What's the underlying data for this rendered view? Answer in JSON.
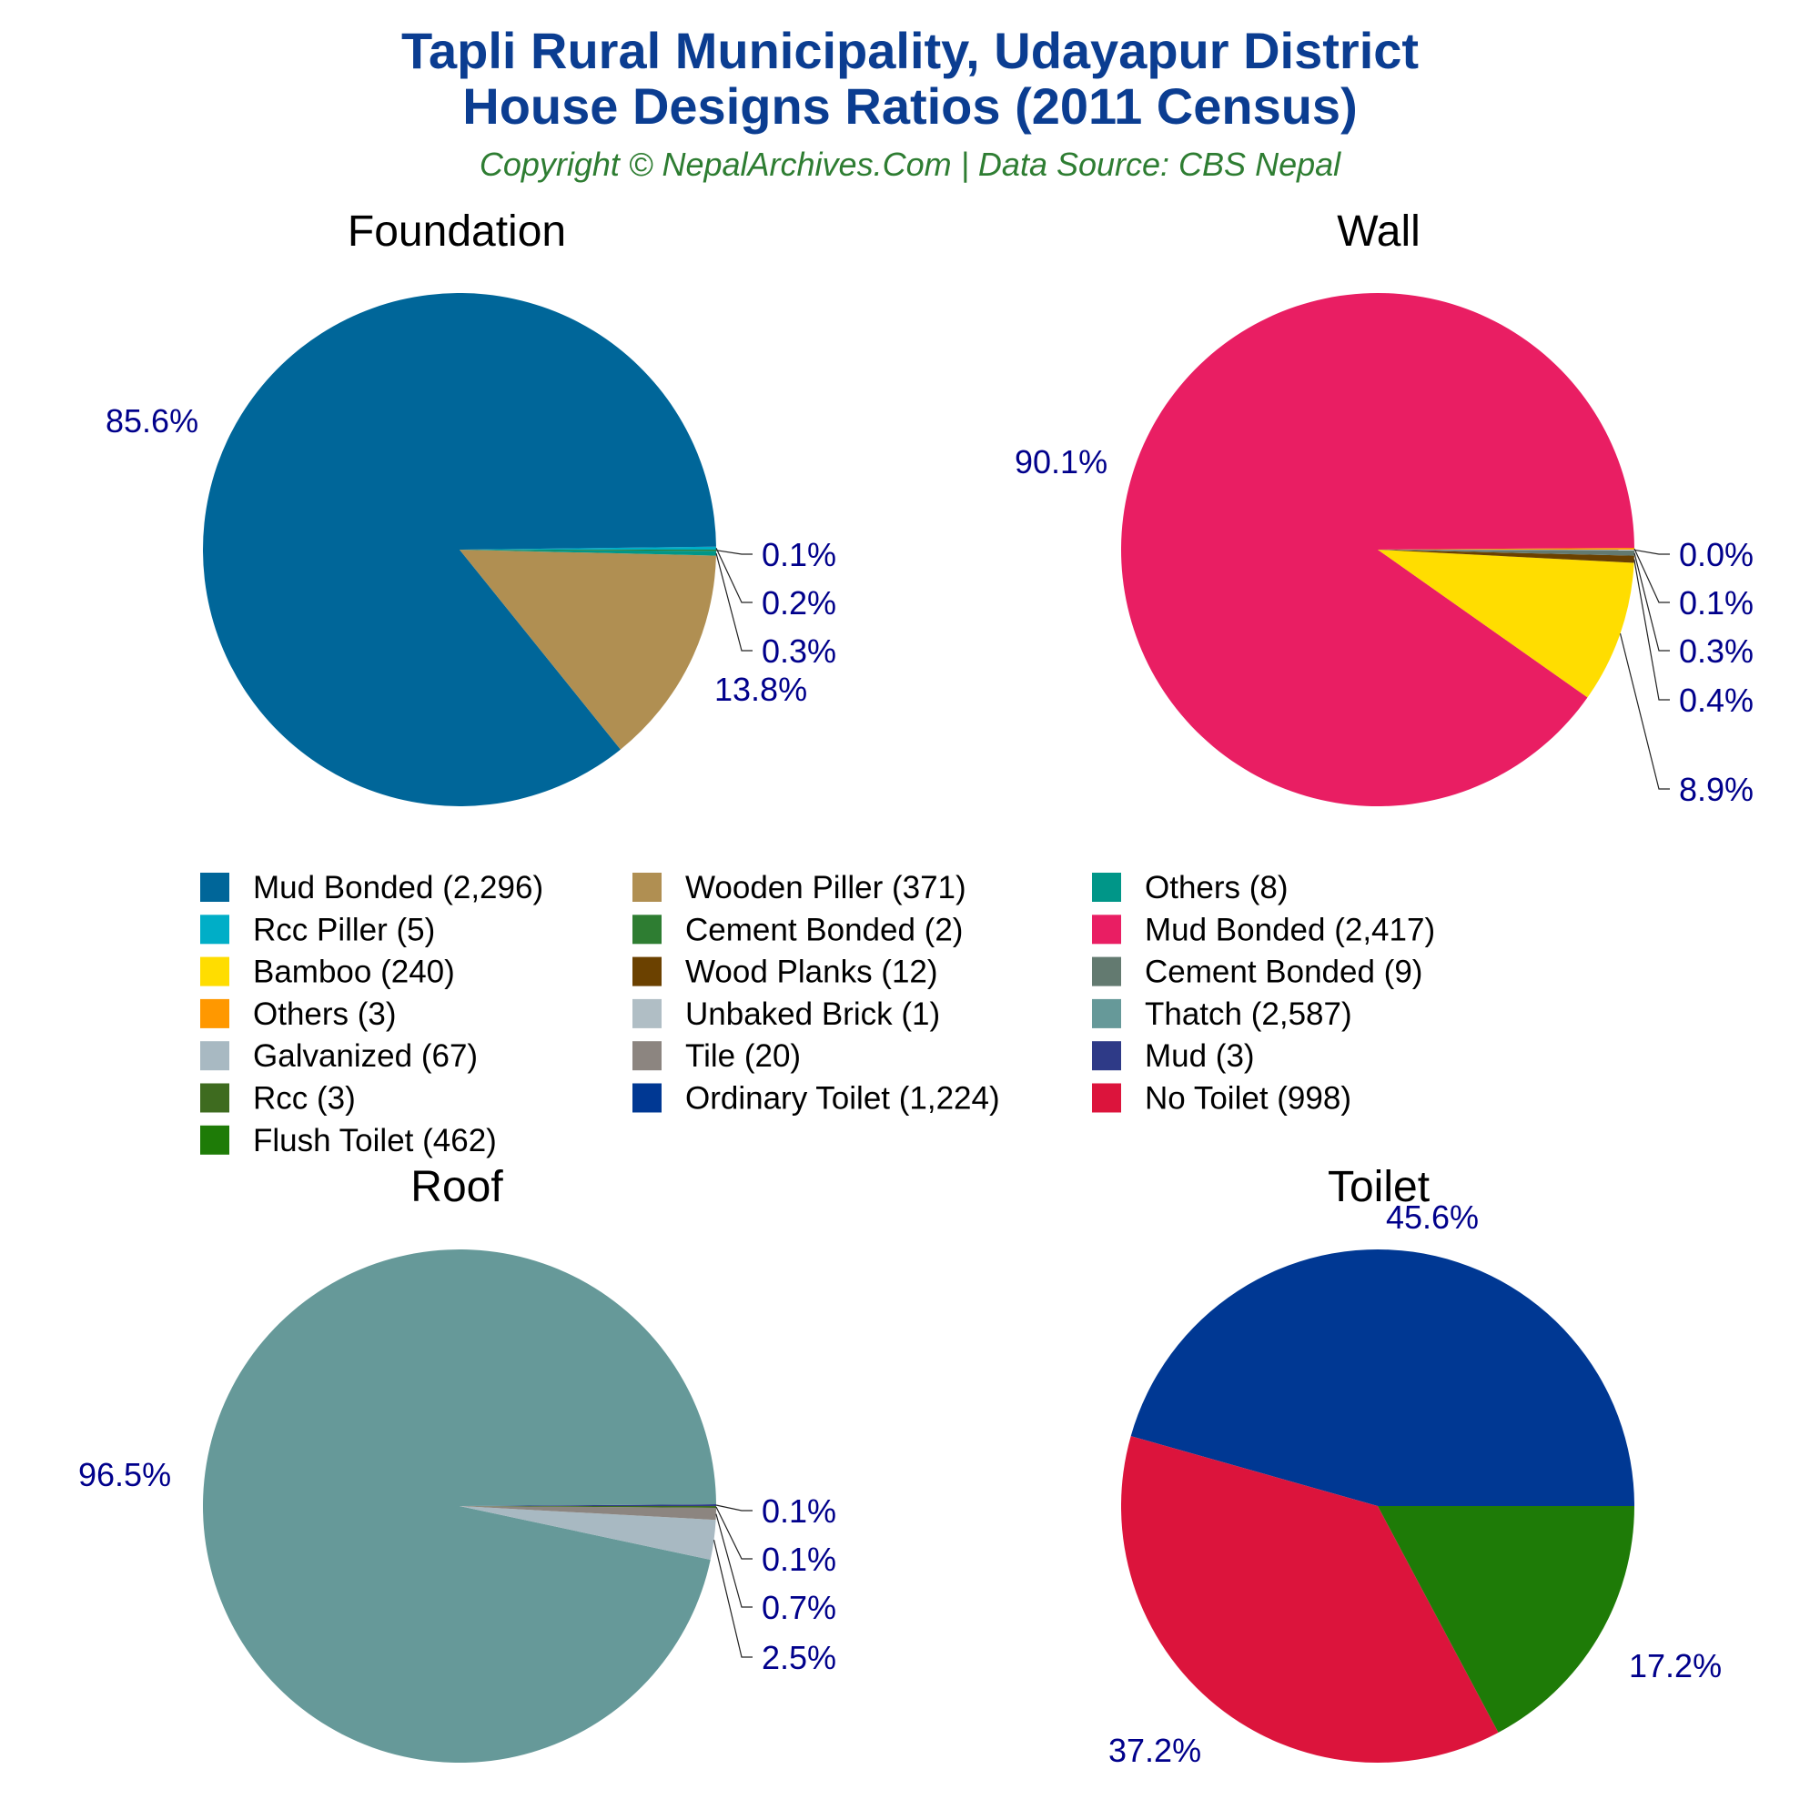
{
  "header": {
    "title_line1": "Tapli Rural Municipality, Udayapur District",
    "title_line2": "House Designs Ratios (2011 Census)",
    "subtitle": "Copyright © NepalArchives.Com | Data Source: CBS Nepal"
  },
  "colors": {
    "title": "#0b3d91",
    "subtitle": "#2e7d32",
    "pct_label": "#00008b"
  },
  "chart_data": [
    {
      "type": "pie",
      "title": "Foundation",
      "slices": [
        {
          "label": "Mud Bonded",
          "count": 2296,
          "percent": 85.6,
          "color": "#006699",
          "pct_label": "85.6%"
        },
        {
          "label": "Rcc Piller",
          "count": 5,
          "percent": 0.2,
          "color": "#00aec7",
          "pct_label": "0.2%"
        },
        {
          "label": "Wooden Piller",
          "count": 371,
          "percent": 13.8,
          "color": "#b08f52",
          "pct_label": "13.8%"
        },
        {
          "label": "Cement Bonded",
          "count": 2,
          "percent": 0.1,
          "color": "#2e7d32",
          "pct_label": "0.1%"
        },
        {
          "label": "Others",
          "count": 8,
          "percent": 0.3,
          "color": "#009688",
          "pct_label": "0.3%"
        }
      ]
    },
    {
      "type": "pie",
      "title": "Wall",
      "slices": [
        {
          "label": "Mud Bonded",
          "count": 2417,
          "percent": 90.1,
          "color": "#e91e63",
          "pct_label": "90.1%"
        },
        {
          "label": "Bamboo",
          "count": 240,
          "percent": 8.9,
          "color": "#ffdd00",
          "pct_label": "8.9%"
        },
        {
          "label": "Wood Planks",
          "count": 12,
          "percent": 0.4,
          "color": "#6b4100",
          "pct_label": "0.4%"
        },
        {
          "label": "Cement Bonded",
          "count": 9,
          "percent": 0.3,
          "color": "#637a70",
          "pct_label": "0.3%"
        },
        {
          "label": "Others",
          "count": 3,
          "percent": 0.1,
          "color": "#ff9800",
          "pct_label": "0.1%"
        },
        {
          "label": "Unbaked Brick",
          "count": 1,
          "percent": 0.0,
          "color": "#b0bec5",
          "pct_label": "0.0%"
        }
      ]
    },
    {
      "type": "pie",
      "title": "Roof",
      "slices": [
        {
          "label": "Thatch",
          "count": 2587,
          "percent": 96.5,
          "color": "#669999",
          "pct_label": "96.5%"
        },
        {
          "label": "Galvanized",
          "count": 67,
          "percent": 2.5,
          "color": "#a8b9c2",
          "pct_label": "2.5%"
        },
        {
          "label": "Tile",
          "count": 20,
          "percent": 0.7,
          "color": "#8c8580",
          "pct_label": "0.7%"
        },
        {
          "label": "Rcc",
          "count": 3,
          "percent": 0.1,
          "color": "#3e6b1f",
          "pct_label": "0.1%"
        },
        {
          "label": "Mud",
          "count": 3,
          "percent": 0.1,
          "color": "#2e3a87",
          "pct_label": "0.1%"
        }
      ]
    },
    {
      "type": "pie",
      "title": "Toilet",
      "slices": [
        {
          "label": "Ordinary Toilet",
          "count": 1224,
          "percent": 45.6,
          "color": "#003893",
          "pct_label": "45.6%"
        },
        {
          "label": "No Toilet",
          "count": 998,
          "percent": 37.2,
          "color": "#dc143c",
          "pct_label": "37.2%"
        },
        {
          "label": "Flush Toilet",
          "count": 462,
          "percent": 17.2,
          "color": "#1e7b07",
          "pct_label": "17.2%"
        }
      ]
    }
  ],
  "legend": [
    {
      "text": "Mud Bonded (2,296)",
      "color": "#006699"
    },
    {
      "text": "Wooden Piller (371)",
      "color": "#b08f52"
    },
    {
      "text": "Others (8)",
      "color": "#009688"
    },
    {
      "text": "Rcc Piller (5)",
      "color": "#00aec7"
    },
    {
      "text": "Cement Bonded (2)",
      "color": "#2e7d32"
    },
    {
      "text": "Mud Bonded (2,417)",
      "color": "#e91e63"
    },
    {
      "text": "Bamboo (240)",
      "color": "#ffdd00"
    },
    {
      "text": "Wood Planks (12)",
      "color": "#6b4100"
    },
    {
      "text": "Cement Bonded (9)",
      "color": "#637a70"
    },
    {
      "text": "Others (3)",
      "color": "#ff9800"
    },
    {
      "text": "Unbaked Brick (1)",
      "color": "#b0bec5"
    },
    {
      "text": "Thatch (2,587)",
      "color": "#669999"
    },
    {
      "text": "Galvanized (67)",
      "color": "#a8b9c2"
    },
    {
      "text": "Tile (20)",
      "color": "#8c8580"
    },
    {
      "text": "Mud (3)",
      "color": "#2e3a87"
    },
    {
      "text": "Rcc (3)",
      "color": "#3e6b1f"
    },
    {
      "text": "Ordinary Toilet (1,224)",
      "color": "#003893"
    },
    {
      "text": "No Toilet (998)",
      "color": "#dc143c"
    },
    {
      "text": "Flush Toilet (462)",
      "color": "#1e7b07"
    }
  ]
}
